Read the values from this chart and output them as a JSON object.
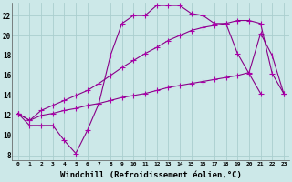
{
  "bg_color": "#cce8e8",
  "grid_color": "#aacece",
  "line_color": "#880088",
  "marker_color": "#aa00aa",
  "xlabel": "Windchill (Refroidissement éolien,°C)",
  "xlabel_fontsize": 6.5,
  "ylabel_ticks": [
    8,
    10,
    12,
    14,
    16,
    18,
    20,
    22
  ],
  "xlim": [
    -0.5,
    23.5
  ],
  "ylim": [
    7.5,
    23.3
  ],
  "line1_x": [
    0,
    1,
    2,
    3,
    4,
    5,
    6,
    7,
    8,
    9,
    10,
    11,
    12,
    13,
    14,
    15,
    16,
    17,
    18,
    19,
    20,
    21
  ],
  "line1_y": [
    12.2,
    11.0,
    11.0,
    11.0,
    9.5,
    8.2,
    10.5,
    13.2,
    18.0,
    21.2,
    22.0,
    22.0,
    23.0,
    23.0,
    23.0,
    22.2,
    22.0,
    21.2,
    21.2,
    18.2,
    16.2,
    14.2
  ],
  "line2_x": [
    0,
    1,
    2,
    3,
    4,
    5,
    6,
    7,
    8,
    9,
    10,
    11,
    12,
    13,
    14,
    15,
    16,
    17,
    18,
    19,
    20,
    21,
    22,
    23
  ],
  "line2_y": [
    12.2,
    11.5,
    12.0,
    12.2,
    12.5,
    12.7,
    13.0,
    13.2,
    13.5,
    13.8,
    14.0,
    14.2,
    14.5,
    14.8,
    15.0,
    15.2,
    15.4,
    15.6,
    15.8,
    16.0,
    16.3,
    20.2,
    18.0,
    14.2
  ],
  "line3_x": [
    0,
    1,
    2,
    3,
    4,
    5,
    6,
    7,
    8,
    9,
    10,
    11,
    12,
    13,
    14,
    15,
    16,
    17,
    18,
    19,
    20,
    21,
    22,
    23
  ],
  "line3_y": [
    12.2,
    11.5,
    12.5,
    13.0,
    13.5,
    14.0,
    14.5,
    15.2,
    16.0,
    16.8,
    17.5,
    18.2,
    18.8,
    19.5,
    20.0,
    20.5,
    20.8,
    21.0,
    21.2,
    21.5,
    21.5,
    21.2,
    16.2,
    14.2
  ]
}
